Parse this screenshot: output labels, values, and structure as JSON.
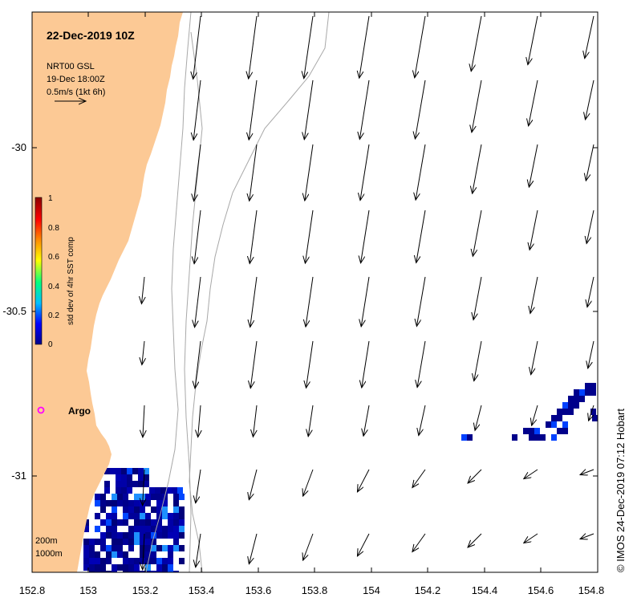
{
  "map": {
    "title": "22-Dec-2019 10Z",
    "legend_lines": [
      "NRT00 GSL",
      "19-Dec 18:00Z",
      "0.5m/s (1kt 6h)"
    ],
    "colorbar_label": "std dev of 4hr SST comp",
    "colorbar_ticks": [
      "1",
      "0.8",
      "0.6",
      "0.4",
      "0.2",
      "0"
    ],
    "colorbar_stops": [
      "#00008b",
      "#0000ff",
      "#00bfff",
      "#00ff7f",
      "#ffff00",
      "#ff8c00",
      "#ff0000",
      "#8b0000"
    ],
    "lon_ticks": [
      "152.8",
      "153",
      "153.2",
      "153.4",
      "153.6",
      "153.8",
      "154",
      "154.2",
      "154.4",
      "154.6",
      "154.8"
    ],
    "lat_ticks": [
      "-30",
      "-30.5",
      "-31"
    ],
    "marker_label": "Argo",
    "marker_color": "#ff00ff",
    "land_color": "#fcc995",
    "contour_labels": [
      "200m",
      "1000m"
    ],
    "credit": "© IMOS 24-Dec-2019 07:12 Hobart"
  }
}
